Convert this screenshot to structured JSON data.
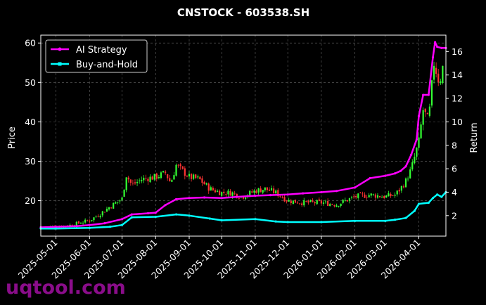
{
  "chart_data": {
    "type": "line",
    "title": "CNSTOCK - 603538.SH",
    "ylabel": "Price",
    "y2label": "Return",
    "ylim": [
      11,
      62
    ],
    "y2lim": [
      0.25,
      17.4
    ],
    "yticks": [
      20,
      30,
      40,
      50,
      60
    ],
    "y2ticks": [
      2,
      4,
      6,
      8,
      10,
      12,
      14,
      16
    ],
    "xlim": [
      "2025-04-17",
      "2026-04-26"
    ],
    "xticks": [
      "2025-05-01",
      "2025-06-01",
      "2025-07-01",
      "2025-08-01",
      "2025-09-01",
      "2025-10-01",
      "2025-11-01",
      "2025-12-01",
      "2026-01-01",
      "2026-02-01",
      "2026-03-01",
      "2026-04-01"
    ],
    "grid": true,
    "legend_position": "top-left",
    "price_series": {
      "name": "Price (OHLC candles)",
      "color_up": "#33ff33",
      "color_down": "#ff3333",
      "x": [
        "2025-04-20",
        "2025-05-01",
        "2025-05-15",
        "2025-06-01",
        "2025-06-10",
        "2025-06-20",
        "2025-07-01",
        "2025-07-05",
        "2025-07-10",
        "2025-07-20",
        "2025-08-01",
        "2025-08-10",
        "2025-08-15",
        "2025-08-20",
        "2025-09-01",
        "2025-09-10",
        "2025-09-20",
        "2025-10-01",
        "2025-10-10",
        "2025-10-20",
        "2025-11-01",
        "2025-11-10",
        "2025-11-20",
        "2025-12-01",
        "2025-12-15",
        "2026-01-01",
        "2026-01-15",
        "2026-02-01",
        "2026-02-15",
        "2026-03-01",
        "2026-03-10",
        "2026-03-15",
        "2026-03-20",
        "2026-03-25",
        "2026-04-01",
        "2026-04-05",
        "2026-04-10",
        "2026-04-15",
        "2026-04-20",
        "2026-04-24"
      ],
      "values": [
        13.2,
        13.4,
        13.8,
        15.0,
        16.5,
        18.5,
        20.5,
        26.5,
        24.0,
        25.5,
        26.0,
        27.0,
        24.5,
        29.0,
        26.0,
        25.5,
        23.0,
        22.0,
        22.0,
        21.0,
        22.5,
        23.0,
        22.0,
        20.0,
        19.5,
        19.5,
        19.0,
        21.0,
        21.5,
        21.0,
        21.5,
        23.0,
        25.0,
        28.0,
        35.0,
        43.0,
        40.0,
        55.0,
        50.0,
        55.0
      ]
    },
    "series": [
      {
        "name": "AI Strategy",
        "color": "#ff00ff",
        "x": [
          "2025-04-17",
          "2025-05-01",
          "2025-05-20",
          "2025-06-01",
          "2025-06-15",
          "2025-07-01",
          "2025-07-10",
          "2025-07-25",
          "2025-08-01",
          "2025-08-10",
          "2025-08-20",
          "2025-09-01",
          "2025-09-15",
          "2025-10-01",
          "2025-10-15",
          "2025-11-01",
          "2025-11-15",
          "2025-12-01",
          "2025-12-15",
          "2026-01-01",
          "2026-01-15",
          "2026-02-01",
          "2026-02-15",
          "2026-03-01",
          "2026-03-10",
          "2026-03-15",
          "2026-03-20",
          "2026-03-25",
          "2026-03-30",
          "2026-04-01",
          "2026-04-05",
          "2026-04-10",
          "2026-04-14",
          "2026-04-16",
          "2026-04-18",
          "2026-04-22",
          "2026-04-26"
        ],
        "values": [
          1.0,
          1.05,
          1.1,
          1.2,
          1.35,
          1.7,
          2.1,
          2.2,
          2.25,
          2.9,
          3.4,
          3.5,
          3.55,
          3.5,
          3.6,
          3.7,
          3.75,
          3.8,
          3.9,
          4.0,
          4.1,
          4.4,
          5.2,
          5.4,
          5.6,
          5.8,
          6.2,
          7.2,
          8.5,
          10.5,
          12.3,
          12.3,
          15.5,
          16.8,
          16.4,
          16.3,
          16.3
        ]
      },
      {
        "name": "Buy-and-Hold",
        "color": "#00ffff",
        "x": [
          "2025-04-17",
          "2025-05-01",
          "2025-06-01",
          "2025-06-20",
          "2025-07-01",
          "2025-07-10",
          "2025-08-01",
          "2025-08-20",
          "2025-09-01",
          "2025-09-20",
          "2025-10-01",
          "2025-11-01",
          "2025-11-20",
          "2025-12-01",
          "2026-01-01",
          "2026-02-01",
          "2026-03-01",
          "2026-03-10",
          "2026-03-20",
          "2026-03-28",
          "2026-04-01",
          "2026-04-10",
          "2026-04-14",
          "2026-04-18",
          "2026-04-22",
          "2026-04-26"
        ],
        "values": [
          0.9,
          0.9,
          0.95,
          1.05,
          1.2,
          1.85,
          1.9,
          2.1,
          2.0,
          1.75,
          1.6,
          1.7,
          1.5,
          1.45,
          1.45,
          1.55,
          1.55,
          1.65,
          1.8,
          2.4,
          3.0,
          3.1,
          3.5,
          3.8,
          3.6,
          4.0
        ]
      }
    ]
  },
  "watermark": "uqtool.com"
}
